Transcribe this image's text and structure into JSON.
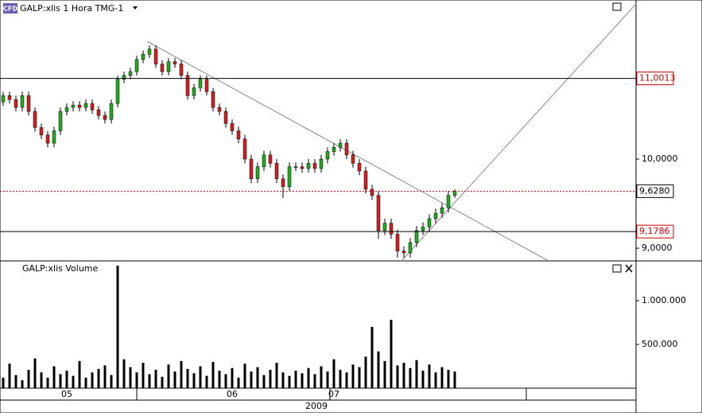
{
  "header": {
    "logo": "CFD"
  },
  "chart_data": [
    {
      "type": "candlestick",
      "title": "GALP:xlis 1 Hora TMG-1",
      "log_scale": true,
      "ylim": [
        8.866,
        12.07
      ],
      "yticks": [
        {
          "value": 10,
          "label": "10,0000"
        },
        {
          "value": 9,
          "label": "9,0000"
        }
      ],
      "up_color": "#22aa22",
      "down_color": "#cc2222",
      "wick_color": "#000000",
      "open": [
        10.7,
        10.78,
        10.73,
        10.63,
        10.78,
        10.58,
        10.38,
        10.29,
        10.19,
        10.34,
        10.58,
        10.63,
        10.66,
        10.63,
        10.68,
        10.6,
        10.53,
        10.48,
        10.68,
        10.99,
        11.04,
        11.09,
        11.25,
        11.32,
        11.39,
        11.19,
        11.09,
        11.22,
        11.19,
        11.04,
        10.78,
        10.88,
        10.99,
        10.83,
        10.63,
        10.58,
        10.43,
        10.34,
        10.24,
        10.0,
        9.77,
        9.91,
        10.05,
        9.95,
        9.77,
        9.68,
        9.91,
        9.91,
        9.89,
        9.95,
        9.89,
        10.0,
        10.09,
        10.14,
        10.19,
        10.05,
        9.95,
        9.86,
        9.65,
        9.58,
        9.19,
        9.27,
        9.15,
        8.97,
        8.95,
        9.06,
        9.19,
        9.23,
        9.32,
        9.38,
        9.44,
        9.58
      ],
      "high": [
        10.83,
        10.83,
        10.78,
        10.83,
        10.83,
        10.63,
        10.43,
        10.34,
        10.39,
        10.63,
        10.68,
        10.71,
        10.71,
        10.73,
        10.73,
        10.65,
        10.58,
        10.73,
        11.04,
        11.09,
        11.14,
        11.3,
        11.37,
        11.44,
        11.44,
        11.24,
        11.27,
        11.27,
        11.24,
        11.09,
        10.93,
        11.04,
        11.04,
        10.88,
        10.68,
        10.63,
        10.48,
        10.39,
        10.29,
        10.05,
        9.96,
        10.1,
        10.1,
        10.0,
        9.82,
        9.96,
        9.96,
        9.96,
        10.0,
        10.0,
        10.05,
        10.14,
        10.19,
        10.24,
        10.24,
        10.1,
        10.0,
        9.91,
        9.7,
        9.63,
        9.32,
        9.32,
        9.2,
        9.02,
        9.11,
        9.24,
        9.28,
        9.37,
        9.43,
        9.49,
        9.63,
        9.65
      ],
      "low": [
        10.65,
        10.68,
        10.58,
        10.58,
        10.53,
        10.33,
        10.24,
        10.14,
        10.14,
        10.29,
        10.53,
        10.58,
        10.58,
        10.58,
        10.55,
        10.48,
        10.43,
        10.43,
        10.63,
        10.94,
        10.99,
        11.04,
        11.2,
        11.27,
        11.14,
        11.04,
        11.04,
        11.14,
        10.99,
        10.73,
        10.73,
        10.83,
        10.78,
        10.58,
        10.53,
        10.38,
        10.29,
        10.19,
        9.95,
        9.72,
        9.72,
        9.86,
        9.9,
        9.72,
        9.55,
        9.63,
        9.86,
        9.84,
        9.84,
        9.84,
        9.84,
        9.95,
        10.04,
        10.09,
        10.0,
        9.9,
        9.81,
        9.6,
        9.53,
        9.1,
        9.14,
        9.1,
        8.9,
        8.9,
        8.9,
        9.01,
        9.14,
        9.18,
        9.27,
        9.33,
        9.39,
        9.55
      ],
      "close": [
        10.78,
        10.73,
        10.63,
        10.78,
        10.58,
        10.38,
        10.29,
        10.19,
        10.34,
        10.58,
        10.63,
        10.66,
        10.63,
        10.68,
        10.6,
        10.53,
        10.48,
        10.68,
        10.99,
        11.04,
        11.09,
        11.25,
        11.32,
        11.39,
        11.19,
        11.09,
        11.22,
        11.19,
        11.04,
        10.78,
        10.88,
        10.99,
        10.83,
        10.63,
        10.58,
        10.43,
        10.34,
        10.24,
        10.0,
        9.77,
        9.91,
        10.05,
        9.95,
        9.77,
        9.68,
        9.91,
        9.91,
        9.89,
        9.95,
        9.89,
        10.0,
        10.09,
        10.14,
        10.19,
        10.05,
        9.95,
        9.86,
        9.65,
        9.58,
        9.19,
        9.27,
        9.15,
        8.97,
        8.95,
        9.06,
        9.19,
        9.23,
        9.32,
        9.38,
        9.44,
        9.58,
        9.628
      ],
      "levels": [
        {
          "value": 11.0013,
          "label": "11,0013",
          "line_color": "#000000",
          "label_color": "#cc0000",
          "dash": "none"
        },
        {
          "value": 9.628,
          "label": "9,6280",
          "line_color": "#cc0000",
          "label_color": "#000000",
          "dash": "2,2"
        },
        {
          "value": 9.1786,
          "label": "9,1786",
          "line_color": "#000000",
          "label_color": "#cc0000",
          "dash": "none"
        }
      ]
    },
    {
      "type": "bar",
      "title": "GALP:xlis Volume",
      "color": "#000000",
      "ylim": [
        0,
        1436000
      ],
      "yticks": [
        {
          "value": 1000000,
          "label": "1.000.000"
        },
        {
          "value": 500000,
          "label": "500.000"
        }
      ],
      "categories": [
        null,
        null,
        null,
        null,
        null,
        null,
        null,
        null,
        null,
        null,
        "05",
        null,
        null,
        null,
        null,
        null,
        null,
        null,
        null,
        null,
        null,
        null,
        null,
        null,
        null,
        null,
        null,
        null,
        null,
        null,
        null,
        null,
        null,
        null,
        null,
        null,
        "06",
        null,
        null,
        null,
        null,
        null,
        null,
        null,
        null,
        null,
        null,
        null,
        null,
        null,
        null,
        null,
        "07",
        null,
        null,
        null,
        null,
        null,
        null,
        null,
        null,
        null,
        null,
        null,
        null,
        null,
        null,
        null,
        null,
        null,
        null,
        null
      ],
      "x_label": "2009",
      "values": [
        120000,
        280000,
        150000,
        90000,
        210000,
        340000,
        180000,
        120000,
        250000,
        160000,
        200000,
        140000,
        310000,
        120000,
        180000,
        220000,
        260000,
        150000,
        1400000,
        330000,
        240000,
        180000,
        290000,
        160000,
        210000,
        130000,
        270000,
        190000,
        310000,
        220000,
        170000,
        250000,
        140000,
        300000,
        200000,
        160000,
        230000,
        120000,
        280000,
        190000,
        240000,
        150000,
        210000,
        290000,
        180000,
        140000,
        200000,
        170000,
        230000,
        160000,
        250000,
        190000,
        330000,
        210000,
        180000,
        270000,
        240000,
        360000,
        700000,
        420000,
        310000,
        780000,
        260000,
        290000,
        230000,
        320000,
        200000,
        270000,
        180000,
        240000,
        210000,
        190000
      ]
    }
  ]
}
